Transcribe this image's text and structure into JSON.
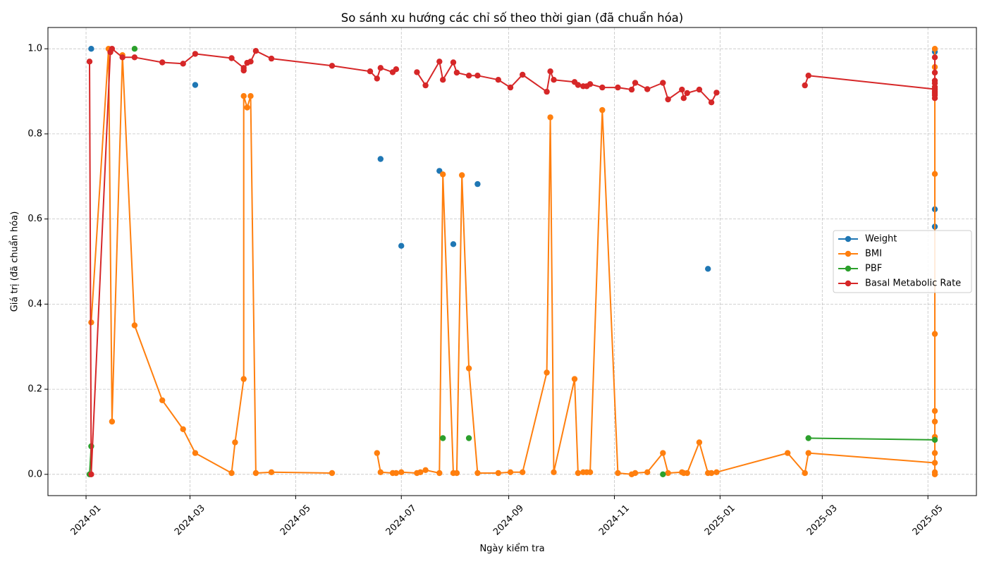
{
  "chart_data": {
    "type": "line",
    "title": "So sánh xu hướng các chỉ số theo thời gian (đã chuẩn hóa)",
    "xlabel": "Ngày kiểm tra",
    "ylabel": "Giá trị (đã chuẩn hóa)",
    "xlim": [
      "2023-12-10",
      "2025-05-29"
    ],
    "ylim": [
      -0.05,
      1.05
    ],
    "grid": true,
    "legend_position": "center right",
    "x_ticks": [
      {
        "date": "2024-01-01",
        "label": "2024-01"
      },
      {
        "date": "2024-03-01",
        "label": "2024-03"
      },
      {
        "date": "2024-05-01",
        "label": "2024-05"
      },
      {
        "date": "2024-07-01",
        "label": "2024-07"
      },
      {
        "date": "2024-09-01",
        "label": "2024-09"
      },
      {
        "date": "2024-11-01",
        "label": "2024-11"
      },
      {
        "date": "2025-01-01",
        "label": "2025-01"
      },
      {
        "date": "2025-03-01",
        "label": "2025-03"
      },
      {
        "date": "2025-05-01",
        "label": "2025-05"
      }
    ],
    "y_ticks": [
      {
        "value": 0.0,
        "label": "0.0"
      },
      {
        "value": 0.2,
        "label": "0.2"
      },
      {
        "value": 0.4,
        "label": "0.4"
      },
      {
        "value": 0.6,
        "label": "0.6"
      },
      {
        "value": 0.8,
        "label": "0.8"
      },
      {
        "value": 1.0,
        "label": "1.0"
      }
    ],
    "series": [
      {
        "name": "Weight",
        "color": "#1f77b4",
        "points": [
          [
            "2024-01-04",
            1.0
          ],
          null,
          [
            "2024-03-04",
            0.915
          ],
          null,
          [
            "2024-06-19",
            0.741
          ],
          null,
          [
            "2024-07-01",
            0.537
          ],
          null,
          [
            "2024-07-23",
            0.713
          ],
          null,
          [
            "2024-07-31",
            0.541
          ],
          null,
          [
            "2024-08-14",
            0.682
          ],
          null,
          [
            "2024-12-25",
            0.483
          ],
          null,
          [
            "2025-05-05",
            0.993
          ],
          [
            "2025-05-05",
            0.623
          ],
          [
            "2025-05-05",
            0.582
          ]
        ]
      },
      {
        "name": "BMI",
        "color": "#ff7f0e",
        "points": [
          [
            "2024-01-04",
            0.357
          ],
          [
            "2024-01-14",
            1.0
          ],
          [
            "2024-01-16",
            0.124
          ],
          [
            "2024-01-22",
            0.985
          ],
          [
            "2024-01-29",
            0.35
          ],
          [
            "2024-02-14",
            0.174
          ],
          [
            "2024-02-26",
            0.106
          ],
          [
            "2024-03-04",
            0.05
          ],
          [
            "2024-03-25",
            0.003
          ],
          [
            "2024-03-27",
            0.075
          ],
          [
            "2024-04-01",
            0.224
          ],
          [
            "2024-04-01",
            0.889
          ],
          [
            "2024-04-03",
            0.862
          ],
          [
            "2024-04-05",
            0.889
          ],
          [
            "2024-04-08",
            0.003
          ],
          [
            "2024-04-17",
            0.005
          ],
          [
            "2024-05-22",
            0.003
          ],
          null,
          [
            "2024-06-17",
            0.05
          ],
          [
            "2024-06-19",
            0.005
          ],
          [
            "2024-06-26",
            0.003
          ],
          [
            "2024-06-28",
            0.003
          ],
          [
            "2024-07-01",
            0.005
          ],
          [
            "2024-07-10",
            0.003
          ],
          [
            "2024-07-12",
            0.005
          ],
          [
            "2024-07-15",
            0.01
          ],
          [
            "2024-07-23",
            0.003
          ],
          [
            "2024-07-25",
            0.705
          ],
          [
            "2024-07-31",
            0.003
          ],
          [
            "2024-08-02",
            0.003
          ],
          [
            "2024-08-05",
            0.703
          ],
          [
            "2024-08-09",
            0.249
          ],
          [
            "2024-08-14",
            0.003
          ],
          [
            "2024-08-26",
            0.003
          ],
          [
            "2024-09-02",
            0.005
          ],
          [
            "2024-09-09",
            0.005
          ],
          [
            "2024-09-23",
            0.239
          ],
          [
            "2024-09-25",
            0.839
          ],
          [
            "2024-09-27",
            0.005
          ],
          [
            "2024-10-09",
            0.224
          ],
          [
            "2024-10-11",
            0.003
          ],
          [
            "2024-10-14",
            0.005
          ],
          [
            "2024-10-16",
            0.005
          ],
          [
            "2024-10-18",
            0.005
          ],
          [
            "2024-10-25",
            0.856
          ],
          [
            "2024-11-03",
            0.003
          ],
          [
            "2024-11-11",
            0.0
          ],
          [
            "2024-11-13",
            0.003
          ],
          [
            "2024-11-20",
            0.005
          ],
          [
            "2024-11-29",
            0.05
          ],
          [
            "2024-12-02",
            0.003
          ],
          [
            "2024-12-10",
            0.005
          ],
          [
            "2024-12-11",
            0.003
          ],
          [
            "2024-12-13",
            0.003
          ],
          [
            "2024-12-20",
            0.075
          ],
          [
            "2024-12-25",
            0.003
          ],
          [
            "2024-12-27",
            0.003
          ],
          [
            "2024-12-30",
            0.005
          ],
          [
            "2025-02-09",
            0.05
          ],
          [
            "2025-02-19",
            0.003
          ],
          [
            "2025-02-21",
            0.05
          ],
          [
            "2025-05-05",
            0.027
          ],
          [
            "2025-05-05",
            1.0
          ],
          [
            "2025-05-05",
            0.957
          ],
          [
            "2025-05-05",
            0.706
          ],
          [
            "2025-05-05",
            0.33
          ],
          [
            "2025-05-05",
            0.149
          ],
          [
            "2025-05-05",
            0.124
          ],
          [
            "2025-05-05",
            0.088
          ],
          [
            "2025-05-05",
            0.05
          ],
          [
            "2025-05-05",
            0.005
          ],
          [
            "2025-05-05",
            0.0
          ]
        ]
      },
      {
        "name": "PBF",
        "color": "#2ca02c",
        "points": [
          [
            "2024-01-03",
            0.0
          ],
          [
            "2024-01-04",
            0.066
          ],
          null,
          [
            "2024-01-29",
            1.0
          ],
          null,
          [
            "2024-07-25",
            0.085
          ],
          null,
          [
            "2024-08-09",
            0.085
          ],
          null,
          [
            "2024-11-29",
            0.0
          ],
          null,
          [
            "2025-02-21",
            0.085
          ],
          [
            "2025-05-05",
            0.081
          ]
        ]
      },
      {
        "name": "Basal Metabolic Rate",
        "color": "#d62728",
        "points": [
          [
            "2024-01-03",
            0.97
          ],
          [
            "2024-01-04",
            0.0
          ],
          [
            "2024-01-15",
            0.992
          ],
          [
            "2024-01-16",
            1.0
          ],
          [
            "2024-01-22",
            0.98
          ],
          [
            "2024-01-29",
            0.98
          ],
          [
            "2024-02-14",
            0.968
          ],
          [
            "2024-02-26",
            0.965
          ],
          [
            "2024-03-04",
            0.988
          ],
          [
            "2024-03-25",
            0.978
          ],
          [
            "2024-04-01",
            0.955
          ],
          [
            "2024-04-01",
            0.949
          ],
          [
            "2024-04-03",
            0.967
          ],
          [
            "2024-04-05",
            0.97
          ],
          [
            "2024-04-08",
            0.995
          ],
          [
            "2024-04-17",
            0.977
          ],
          [
            "2024-05-22",
            0.96
          ],
          [
            "2024-06-13",
            0.947
          ],
          [
            "2024-06-17",
            0.93
          ],
          [
            "2024-06-19",
            0.955
          ],
          [
            "2024-06-26",
            0.945
          ],
          [
            "2024-06-28",
            0.952
          ],
          null,
          [
            "2024-07-10",
            0.945
          ],
          [
            "2024-07-15",
            0.914
          ],
          [
            "2024-07-23",
            0.97
          ],
          [
            "2024-07-25",
            0.927
          ],
          [
            "2024-07-31",
            0.968
          ],
          [
            "2024-08-02",
            0.944
          ],
          [
            "2024-08-09",
            0.937
          ],
          [
            "2024-08-14",
            0.937
          ],
          [
            "2024-08-26",
            0.927
          ],
          [
            "2024-09-02",
            0.909
          ],
          [
            "2024-09-09",
            0.939
          ],
          [
            "2024-09-23",
            0.899
          ],
          [
            "2024-09-25",
            0.947
          ],
          [
            "2024-09-27",
            0.927
          ],
          [
            "2024-10-09",
            0.922
          ],
          [
            "2024-10-11",
            0.915
          ],
          [
            "2024-10-14",
            0.912
          ],
          [
            "2024-10-16",
            0.912
          ],
          [
            "2024-10-18",
            0.917
          ],
          [
            "2024-10-25",
            0.909
          ],
          [
            "2024-11-03",
            0.909
          ],
          [
            "2024-11-11",
            0.904
          ],
          [
            "2024-11-13",
            0.92
          ],
          [
            "2024-11-20",
            0.905
          ],
          [
            "2024-11-29",
            0.92
          ],
          [
            "2024-12-02",
            0.881
          ],
          [
            "2024-12-10",
            0.904
          ],
          [
            "2024-12-11",
            0.884
          ],
          [
            "2024-12-13",
            0.896
          ],
          [
            "2024-12-20",
            0.904
          ],
          [
            "2024-12-27",
            0.874
          ],
          [
            "2024-12-30",
            0.897
          ],
          null,
          [
            "2025-02-19",
            0.914
          ],
          [
            "2025-02-21",
            0.937
          ],
          [
            "2025-05-05",
            0.905
          ],
          [
            "2025-05-05",
            0.98
          ],
          [
            "2025-05-05",
            0.944
          ],
          [
            "2025-05-05",
            0.925
          ],
          [
            "2025-05-05",
            0.919
          ],
          [
            "2025-05-05",
            0.91
          ],
          [
            "2025-05-05",
            0.9
          ],
          [
            "2025-05-05",
            0.896
          ],
          [
            "2025-05-05",
            0.891
          ],
          [
            "2025-05-05",
            0.884
          ]
        ]
      }
    ]
  }
}
